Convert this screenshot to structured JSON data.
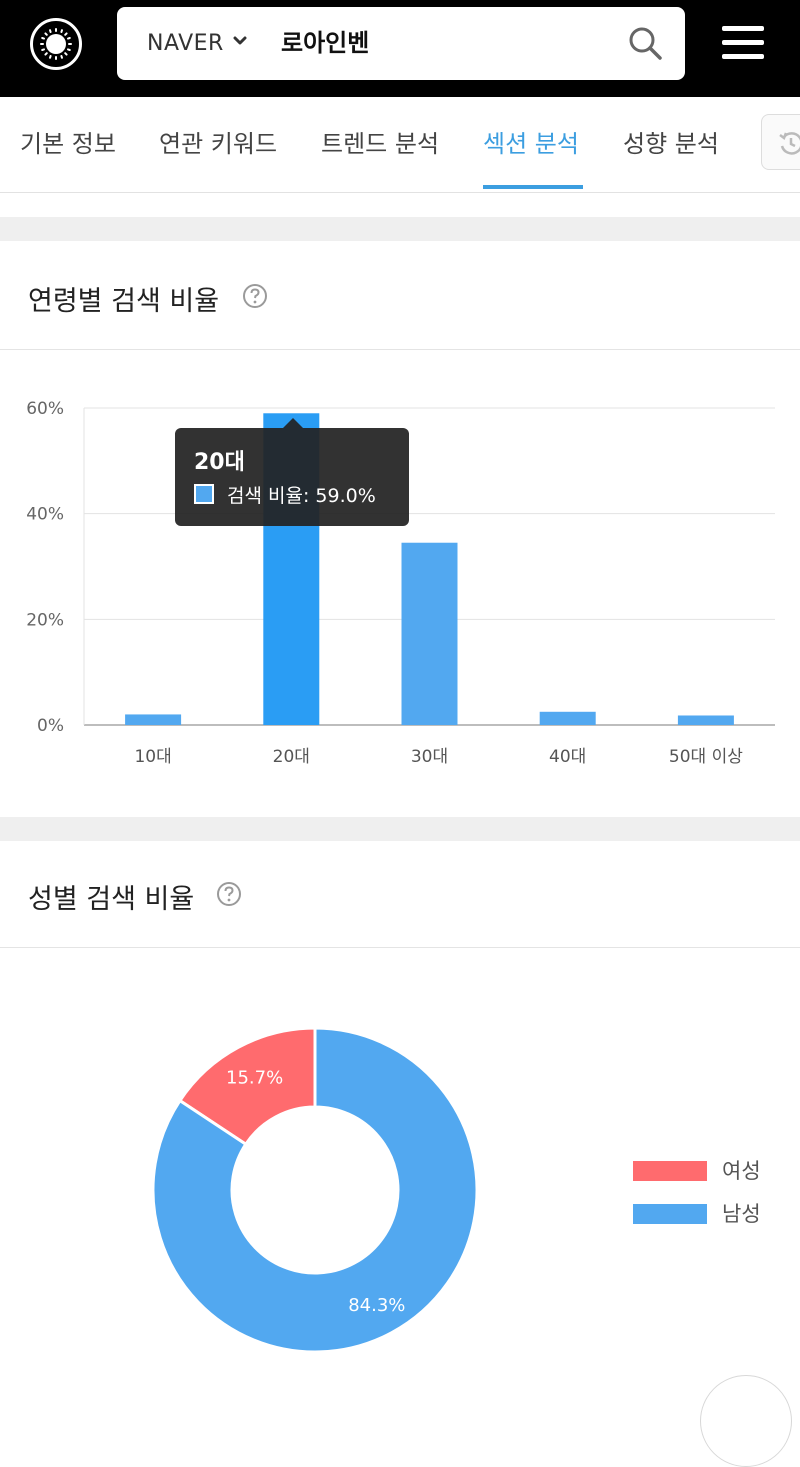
{
  "header": {
    "engine": "NAVER",
    "query": "로아인벤"
  },
  "tabs": [
    {
      "label": "기본 정보",
      "active": false
    },
    {
      "label": "연관 키워드",
      "active": false
    },
    {
      "label": "트렌드 분석",
      "active": false
    },
    {
      "label": "섹션 분석",
      "active": true
    },
    {
      "label": "성향 분석",
      "active": false
    }
  ],
  "age_section": {
    "title": "연령별 검색 비율",
    "tooltip": {
      "title": "20대",
      "text": "검색 비율: 59.0%"
    }
  },
  "gender_section": {
    "title": "성별 검색 비율",
    "legend": [
      {
        "label": "여성",
        "color": "#ff6b6e"
      },
      {
        "label": "남성",
        "color": "#52a8f0"
      }
    ]
  },
  "chart_data": [
    {
      "type": "bar",
      "categories": [
        "10대",
        "20대",
        "30대",
        "40대",
        "50대 이상"
      ],
      "series": [
        {
          "values": [
            2.0,
            59.0,
            34.5,
            2.5,
            1.8
          ]
        }
      ],
      "ylim": [
        0,
        60
      ],
      "yticks": [
        "0%",
        "20%",
        "40%",
        "60%"
      ],
      "highlighted": "20대",
      "colors": {
        "bar": "#52a8f0",
        "highlight": "#2a9df4"
      },
      "grid": true
    },
    {
      "type": "pie",
      "donut": true,
      "categories": [
        "여성",
        "남성"
      ],
      "values": [
        15.7,
        84.3
      ],
      "labels": [
        "15.7%",
        "84.3%"
      ],
      "colors": [
        "#ff6b6e",
        "#52a8f0"
      ],
      "legend": "right"
    }
  ]
}
